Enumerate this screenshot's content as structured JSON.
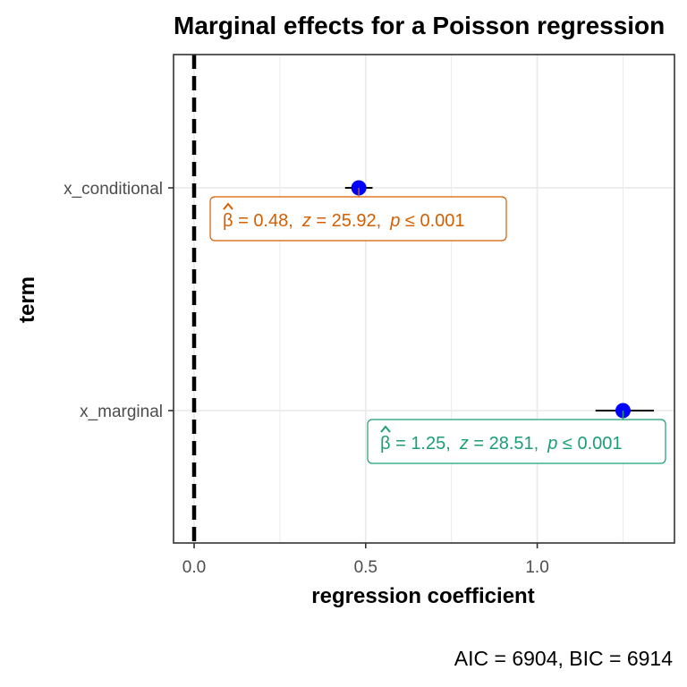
{
  "chart_data": {
    "type": "scatter",
    "title": "Marginal effects for a Poisson regression",
    "xlabel": "regression coefficient",
    "ylabel": "term",
    "caption": "AIC = 6904, BIC = 6914",
    "xlim": [
      -0.06,
      1.4
    ],
    "xticks": [
      0.0,
      0.5,
      1.0
    ],
    "xtick_labels": [
      "0.0",
      "0.5",
      "1.0"
    ],
    "grid": true,
    "reference_line": {
      "x": 0,
      "style": "dashed",
      "color": "#000000"
    },
    "point_color": "#0000ff",
    "terms": [
      {
        "name": "x_conditional",
        "estimate": 0.48,
        "ci_low": 0.44,
        "ci_high": 0.52,
        "z": "25.92",
        "p": "0.001",
        "label_color": "#d55e00",
        "label": {
          "beta": "β",
          "estimate": "0.48",
          "z_name": "z",
          "z": "25.92",
          "p_name": "p",
          "p": "0.001"
        }
      },
      {
        "name": "x_marginal",
        "estimate": 1.25,
        "ci_low": 1.17,
        "ci_high": 1.34,
        "z": "28.51",
        "p": "0.001",
        "label_color": "#1b9e77",
        "label": {
          "beta": "β",
          "estimate": "1.25",
          "z_name": "z",
          "z": "28.51",
          "p_name": "p",
          "p": "0.001"
        }
      }
    ]
  }
}
